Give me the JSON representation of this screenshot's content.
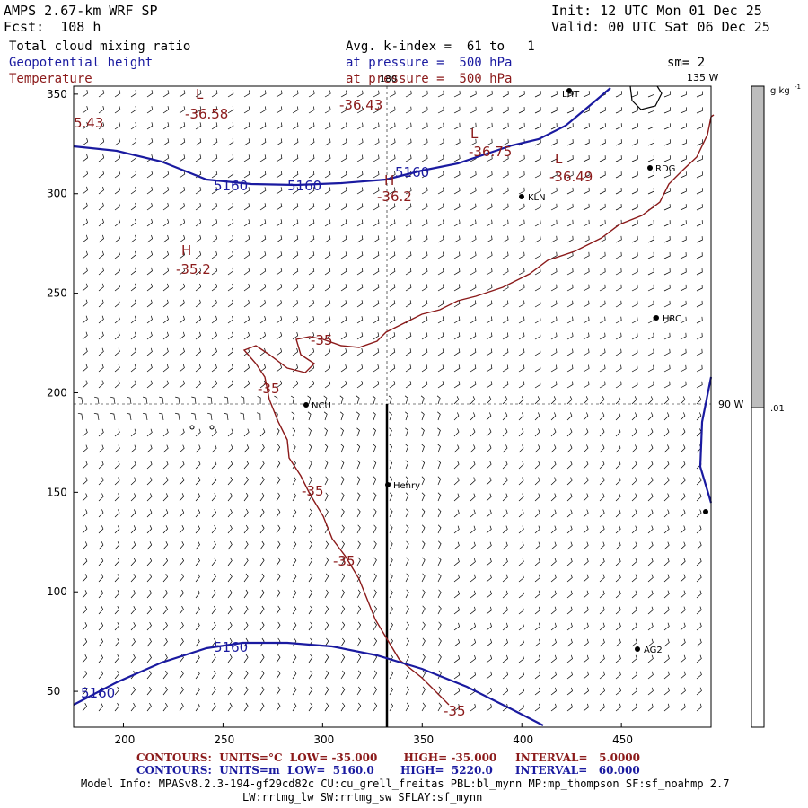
{
  "header": {
    "model_title": "AMPS 2.67-km WRF SP",
    "forecast": "Fcst:  108 h",
    "init": "Init: 12 UTC Mon 01 Dec 25",
    "valid": "Valid: 00 UTC Sat 06 Dec 25",
    "field_1": "Total cloud mixing ratio",
    "field_2": "Geopotential height",
    "field_3": "Temperature",
    "avg_kindex": "Avg. k-index =  61 to   1",
    "pressure_1": "at pressure =  500 hPa",
    "pressure_2": "at pressure =  500 hPa",
    "smoothing": "sm= 2"
  },
  "map": {
    "longitude_labels": {
      "lon_180": "180",
      "lon_135w": "135 W",
      "lon_90w": "90 W"
    },
    "x_ticks": [
      "200",
      "250",
      "300",
      "350",
      "400",
      "450"
    ],
    "y_ticks": [
      "350",
      "300",
      "250",
      "200",
      "150",
      "100",
      "50"
    ],
    "stations": [
      "LHT",
      "RDG",
      "KLN",
      "HRC",
      "NCU",
      "Henry",
      "AG2"
    ],
    "height_contour_labels": [
      "5160",
      "5160",
      "5160",
      "5160",
      "5160"
    ],
    "temp_contour_labels": [
      "-35",
      "-35",
      "-35",
      "-35",
      "-35"
    ],
    "temp_extrema": [
      {
        "symbol": "L",
        "value": "-36.58"
      },
      {
        "symbol": "L",
        "value": "-36.75"
      },
      {
        "symbol": "L",
        "value": "-36.49"
      },
      {
        "symbol": "H",
        "value": "-36.2"
      },
      {
        "symbol": "H",
        "value": "-35.2"
      }
    ],
    "upper_left_values": [
      "5.43",
      "-36.43"
    ],
    "background": "#ffffff",
    "colors": {
      "height": "#1a1aa0",
      "temperature": "#8b1a1a",
      "barbs": "#000000"
    }
  },
  "colorbar": {
    "units": "g kg",
    "units_exp": "-1",
    "label_mid": ".01",
    "fill_color": "#bdbdbd"
  },
  "footer": {
    "contours_temp": "CONTOURS:  UNITS=°C  LOW= -35.000       HIGH= -35.000     INTERVAL=   5.0000",
    "contours_height": "CONTOURS:  UNITS=m  LOW=  5160.0       HIGH=  5220.0      INTERVAL=   60.000",
    "model_info_1": "Model Info: MPASv8.2.3-194-gf29cd82c CU:cu_grell_freitas PBL:bl_mynn MP:mp_thompson SF:sf_noahmp 2.7",
    "model_info_2": "LW:rrtmg_lw SW:rrtmg_sw SFLAY:sf_mynn"
  }
}
